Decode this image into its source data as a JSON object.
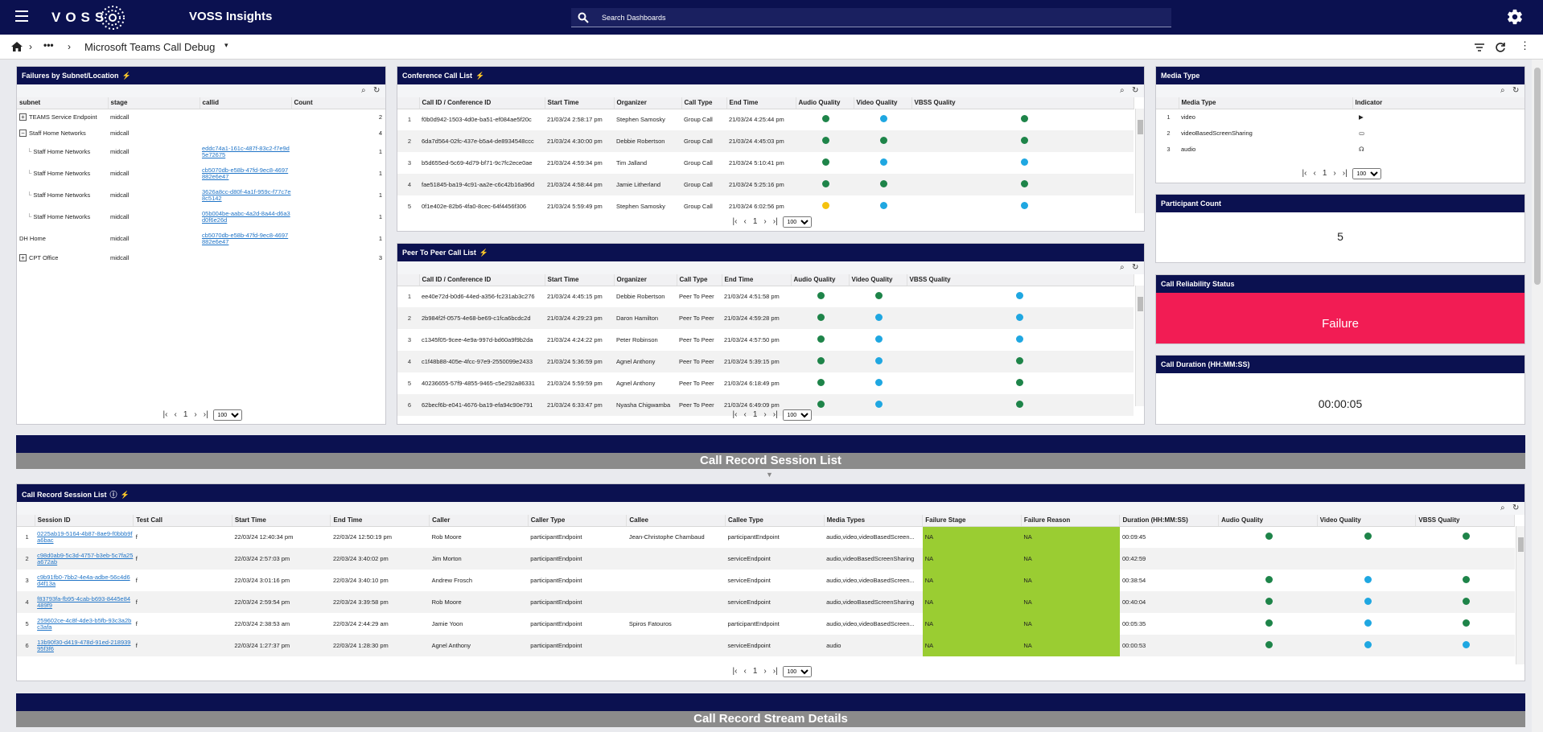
{
  "app": {
    "title": "VOSS Insights",
    "logo": "VOSS"
  },
  "search": {
    "placeholder": "Search Dashboards"
  },
  "breadcrumb": {
    "title": "Microsoft Teams Call Debug",
    "ellipsis": "•••"
  },
  "failures_panel": {
    "title": "Failures by Subnet/Location",
    "columns": [
      "subnet",
      "stage",
      "callid",
      "Count"
    ],
    "rows": [
      {
        "subnet": "TEAMS Service Endpoint",
        "stage": "midcall",
        "callid": "",
        "count": "2",
        "expand": "+",
        "indent": 0
      },
      {
        "subnet": "Staff Home Networks",
        "stage": "midcall",
        "callid": "",
        "count": "4",
        "expand": "−",
        "indent": 0
      },
      {
        "subnet": "Staff Home Networks",
        "stage": "midcall",
        "callid": "eddc74a1-161c-487f-83c2-f7e9d5e72675",
        "count": "1",
        "expand": "",
        "indent": 1
      },
      {
        "subnet": "Staff Home Networks",
        "stage": "midcall",
        "callid": "cb5070db-e58b-47fd-9ec8-4697882e6e47",
        "count": "1",
        "expand": "",
        "indent": 1
      },
      {
        "subnet": "Staff Home Networks",
        "stage": "midcall",
        "callid": "3626a8cc-d80f-4a1f-959c-f77c7e8c5142",
        "count": "1",
        "expand": "",
        "indent": 1
      },
      {
        "subnet": "Staff Home Networks",
        "stage": "midcall",
        "callid": "05b004be-aabc-4a2d-8a44-d6a3d0f6e26d",
        "count": "1",
        "expand": "",
        "indent": 1
      },
      {
        "subnet": "DH Home",
        "stage": "midcall",
        "callid": "cb5070db-e58b-47fd-9ec8-4697882e6e47",
        "count": "1",
        "expand": "",
        "indent": 0
      },
      {
        "subnet": "CPT Office",
        "stage": "midcall",
        "callid": "",
        "count": "3",
        "expand": "+",
        "indent": 0
      }
    ],
    "page": "1",
    "page_size": "100"
  },
  "conference_panel": {
    "title": "Conference Call List",
    "columns": [
      "Call ID / Conference ID",
      "Start Time",
      "Organizer",
      "Call Type",
      "End Time",
      "Audio Quality",
      "Video Quality",
      "VBSS Quality"
    ],
    "rows": [
      {
        "n": "1",
        "id": "f0b0d942-1503-4d0e-ba51-ef084ae5f20c",
        "start": "21/03/24 2:58:17 pm",
        "org": "Stephen Samosky",
        "type": "Group Call",
        "end": "21/03/24 4:25:44 pm",
        "a": "green",
        "v": "blue",
        "s": "green"
      },
      {
        "n": "2",
        "id": "6da7d564-02fc-437e-b5a4-de8934548ccc",
        "start": "21/03/24 4:30:00 pm",
        "org": "Debbie Robertson",
        "type": "Group Call",
        "end": "21/03/24 4:45:03 pm",
        "a": "green",
        "v": "green",
        "s": "green"
      },
      {
        "n": "3",
        "id": "b5d655ed-5c69-4d79-bf71-9c7fc2ece0ae",
        "start": "21/03/24 4:59:34 pm",
        "org": "Tim Jalland",
        "type": "Group Call",
        "end": "21/03/24 5:10:41 pm",
        "a": "green",
        "v": "blue",
        "s": "blue"
      },
      {
        "n": "4",
        "id": "fae51845-ba19-4c91-aa2e-c6c42b16a96d",
        "start": "21/03/24 4:58:44 pm",
        "org": "Jamie Litherland",
        "type": "Group Call",
        "end": "21/03/24 5:25:16 pm",
        "a": "green",
        "v": "green",
        "s": "green"
      },
      {
        "n": "5",
        "id": "0f1e402e-82b6-4fa0-8cec-64f4456f306",
        "start": "21/03/24 5:59:49 pm",
        "org": "Stephen Samosky",
        "type": "Group Call",
        "end": "21/03/24 6:02:56 pm",
        "a": "yellow",
        "v": "blue",
        "s": "blue"
      }
    ],
    "page": "1",
    "page_size": "100"
  },
  "p2p_panel": {
    "title": "Peer To Peer Call List",
    "columns": [
      "Call ID / Conference ID",
      "Start Time",
      "Organizer",
      "Call Type",
      "End Time",
      "Audio Quality",
      "Video Quality",
      "VBSS Quality"
    ],
    "rows": [
      {
        "n": "1",
        "id": "ee40e72d-b0d6-44ed-a356-fc231ab3c276",
        "start": "21/03/24 4:45:15 pm",
        "org": "Debbie Robertson",
        "type": "Peer To Peer",
        "end": "21/03/24 4:51:58 pm",
        "a": "green",
        "v": "green",
        "s": "blue"
      },
      {
        "n": "2",
        "id": "2b984f2f-0575-4e68-be69-c1fca6bcdc2d",
        "start": "21/03/24 4:29:23 pm",
        "org": "Daron Hamilton",
        "type": "Peer To Peer",
        "end": "21/03/24 4:59:28 pm",
        "a": "green",
        "v": "blue",
        "s": "blue"
      },
      {
        "n": "3",
        "id": "c1345f05-9cee-4e9a-997d-bd60a9f9b2da",
        "start": "21/03/24 4:24:22 pm",
        "org": "Peter Robinson",
        "type": "Peer To Peer",
        "end": "21/03/24 4:57:50 pm",
        "a": "green",
        "v": "blue",
        "s": "blue"
      },
      {
        "n": "4",
        "id": "c1f48b88-405e-4fcc-97e9-2550099e2433",
        "start": "21/03/24 5:36:59 pm",
        "org": "Agnel Anthony",
        "type": "Peer To Peer",
        "end": "21/03/24 5:39:15 pm",
        "a": "green",
        "v": "blue",
        "s": "green"
      },
      {
        "n": "5",
        "id": "40236655-57f9-4855-9465-c5e292a86331",
        "start": "21/03/24 5:59:59 pm",
        "org": "Agnel Anthony",
        "type": "Peer To Peer",
        "end": "21/03/24 6:18:49 pm",
        "a": "green",
        "v": "blue",
        "s": "green"
      },
      {
        "n": "6",
        "id": "62becf6b-e041-4676-ba19-efa94c90e791",
        "start": "21/03/24 6:33:47 pm",
        "org": "Nyasha Chigwamba",
        "type": "Peer To Peer",
        "end": "21/03/24 6:49:09 pm",
        "a": "green",
        "v": "blue",
        "s": "green"
      }
    ],
    "page": "1",
    "page_size": "100"
  },
  "media_panel": {
    "title": "Media Type",
    "columns": [
      "Media Type",
      "Indicator"
    ],
    "rows": [
      {
        "n": "1",
        "type": "video",
        "icon": "▶"
      },
      {
        "n": "2",
        "type": "videoBasedScreenSharing",
        "icon": "▭"
      },
      {
        "n": "3",
        "type": "audio",
        "icon": "☊"
      }
    ],
    "page": "1",
    "page_size": "100"
  },
  "participant": {
    "title": "Participant Count",
    "value": "5"
  },
  "reliability": {
    "title": "Call Reliability Status",
    "value": "Failure"
  },
  "duration": {
    "title": "Call Duration (HH:MM:SS)",
    "value": "00:00:05"
  },
  "session_banner": "Call Record Session List",
  "session_panel": {
    "title": "Call Record Session List",
    "columns": [
      "Session ID",
      "Test Call",
      "Start Time",
      "End Time",
      "Caller",
      "Caller Type",
      "Callee",
      "Callee Type",
      "Media Types",
      "Failure Stage",
      "Failure Reason",
      "Duration (HH:MM:SS)",
      "Audio Quality",
      "Video Quality",
      "VBSS Quality"
    ],
    "rows": [
      {
        "n": "1",
        "id": "0225ab19-5164-4b87-8ae9-f0bbb9fa6bac",
        "test": "f",
        "start": "22/03/24 12:40:34 pm",
        "end": "22/03/24 12:50:19 pm",
        "caller": "Rob Moore",
        "ctype": "participantEndpoint",
        "callee": "Jean-Christophe Chambaud",
        "etype": "participantEndpoint",
        "media": "audio,video,videoBasedScreen...",
        "fstage": "NA",
        "freason": "NA",
        "dur": "00:09:45",
        "a": "green",
        "v": "green",
        "s": "green"
      },
      {
        "n": "2",
        "id": "c98d0ab9-5c3d-4757-b3eb-5c7fa25a672ab",
        "test": "f",
        "start": "22/03/24 2:57:03 pm",
        "end": "22/03/24 3:40:02 pm",
        "caller": "Jim Morton",
        "ctype": "participantEndpoint",
        "callee": "",
        "etype": "serviceEndpoint",
        "media": "audio,videoBasedScreenSharing",
        "fstage": "NA",
        "freason": "NA",
        "dur": "00:42:59",
        "a": "",
        "v": "",
        "s": ""
      },
      {
        "n": "3",
        "id": "c9b91fb0-7bb2-4e4a-adbe-56c4d6d4f13a",
        "test": "f",
        "start": "22/03/24 3:01:16 pm",
        "end": "22/03/24 3:40:10 pm",
        "caller": "Andrew Frosch",
        "ctype": "participantEndpoint",
        "callee": "",
        "etype": "serviceEndpoint",
        "media": "audio,video,videoBasedScreen...",
        "fstage": "NA",
        "freason": "NA",
        "dur": "00:38:54",
        "a": "green",
        "v": "blue",
        "s": "green"
      },
      {
        "n": "4",
        "id": "f83793fa-fb95-4cab-b693-8445e84489f9",
        "test": "f",
        "start": "22/03/24 2:59:54 pm",
        "end": "22/03/24 3:39:58 pm",
        "caller": "Rob Moore",
        "ctype": "participantEndpoint",
        "callee": "",
        "etype": "serviceEndpoint",
        "media": "audio,videoBasedScreenSharing",
        "fstage": "NA",
        "freason": "NA",
        "dur": "00:40:04",
        "a": "green",
        "v": "blue",
        "s": "green"
      },
      {
        "n": "5",
        "id": "259602ce-4c8f-4de3-b5fb-93c3a2bc3afa",
        "test": "f",
        "start": "22/03/24 2:38:53 am",
        "end": "22/03/24 2:44:29 am",
        "caller": "Jamie Yoon",
        "ctype": "participantEndpoint",
        "callee": "Spiros Fatouros",
        "etype": "participantEndpoint",
        "media": "audio,video,videoBasedScreen...",
        "fstage": "NA",
        "freason": "NA",
        "dur": "00:05:35",
        "a": "green",
        "v": "blue",
        "s": "green"
      },
      {
        "n": "6",
        "id": "13b90f30-d419-478d-91ed-21893995f3f6",
        "test": "f",
        "start": "22/03/24 1:27:37 pm",
        "end": "22/03/24 1:28:30 pm",
        "caller": "Agnel Anthony",
        "ctype": "participantEndpoint",
        "callee": "",
        "etype": "serviceEndpoint",
        "media": "audio",
        "fstage": "NA",
        "freason": "NA",
        "dur": "00:00:53",
        "a": "green",
        "v": "blue",
        "s": "blue"
      }
    ],
    "page": "1",
    "page_size": "100"
  },
  "stream_banner": "Call Record Stream Details"
}
